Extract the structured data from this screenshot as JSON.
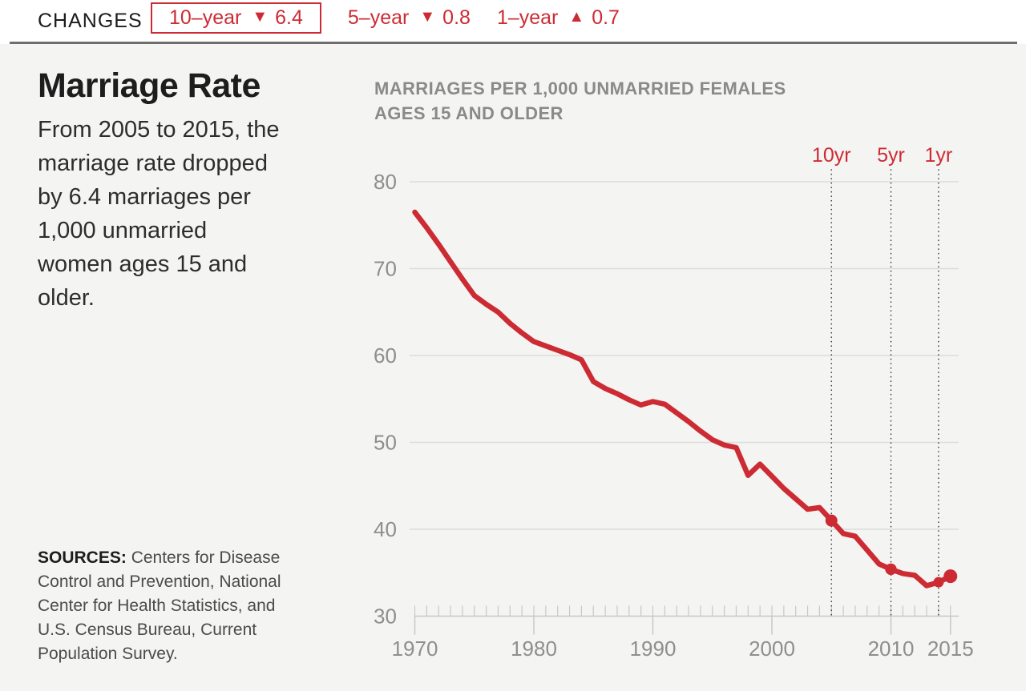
{
  "colors": {
    "accent_red": "#cd2b33",
    "background": "#f4f4f2",
    "grid": "#dcdcdb",
    "axis": "#c9c8c7",
    "axis_text": "#8e8e8d",
    "dotted_guide": "#3e3e3e"
  },
  "header": {
    "label": "CHANGES",
    "changes": [
      {
        "period": "10–year",
        "arrow": "▼",
        "direction": "down",
        "value": "6.4",
        "boxed": true
      },
      {
        "period": "5–year",
        "arrow": "▼",
        "direction": "down",
        "value": "0.8",
        "boxed": false
      },
      {
        "period": "1–year",
        "arrow": "▲",
        "direction": "up",
        "value": "0.7",
        "boxed": false
      }
    ]
  },
  "sidebar": {
    "title": "Marriage Rate",
    "description_lines": [
      "From 2005 to 2015, the",
      "marriage rate dropped",
      "by 6.4 marriages per",
      "1,000 unmarried",
      "women ages 15 and",
      "older."
    ],
    "sources_label": "SOURCES:",
    "sources_lines": [
      "Centers for Disease",
      "Control and Prevention, National",
      "Center for Health Statistics, and",
      "U.S. Census Bureau, Current",
      "Population Survey."
    ]
  },
  "chart_data": {
    "type": "line",
    "title_lines": [
      "MARRIAGES PER 1,000 UNMARRIED FEMALES",
      "AGES 15 AND OLDER"
    ],
    "xlabel": "",
    "ylabel": "",
    "xlim": [
      1970,
      2015
    ],
    "ylim": [
      30,
      80
    ],
    "yticks": [
      30,
      40,
      50,
      60,
      70,
      80
    ],
    "xticks": [
      1970,
      1980,
      1990,
      2000,
      2010,
      2015
    ],
    "minor_xtick_step": 1,
    "grid": true,
    "line_color": "#cd2b33",
    "x": [
      1970,
      1971,
      1972,
      1973,
      1974,
      1975,
      1976,
      1977,
      1978,
      1979,
      1980,
      1981,
      1982,
      1983,
      1984,
      1985,
      1986,
      1987,
      1988,
      1989,
      1990,
      1991,
      1992,
      1993,
      1994,
      1995,
      1996,
      1997,
      1998,
      1999,
      2000,
      2001,
      2002,
      2003,
      2004,
      2005,
      2006,
      2007,
      2008,
      2009,
      2010,
      2011,
      2012,
      2013,
      2014,
      2015
    ],
    "values": [
      76.5,
      74.7,
      72.8,
      70.8,
      68.8,
      66.9,
      65.9,
      65.0,
      63.7,
      62.6,
      61.6,
      61.1,
      60.6,
      60.1,
      59.5,
      57.0,
      56.2,
      55.6,
      54.9,
      54.3,
      54.7,
      54.4,
      53.4,
      52.4,
      51.3,
      50.3,
      49.7,
      49.4,
      46.2,
      47.5,
      46.1,
      44.7,
      43.5,
      42.3,
      42.5,
      41.0,
      39.5,
      39.2,
      37.6,
      36.0,
      35.4,
      34.9,
      34.7,
      33.5,
      33.9,
      34.6
    ],
    "annotations": [
      {
        "label": "10yr",
        "year": 2005
      },
      {
        "label": "5yr",
        "year": 2010
      },
      {
        "label": "1yr",
        "year": 2014
      }
    ],
    "markers": [
      {
        "year": 2005,
        "value": 41.0,
        "r": 7.5
      },
      {
        "year": 2010,
        "value": 35.4,
        "r": 7.2
      },
      {
        "year": 2014,
        "value": 33.9,
        "r": 6.5
      },
      {
        "year": 2015,
        "value": 34.6,
        "r": 8.5
      }
    ]
  }
}
